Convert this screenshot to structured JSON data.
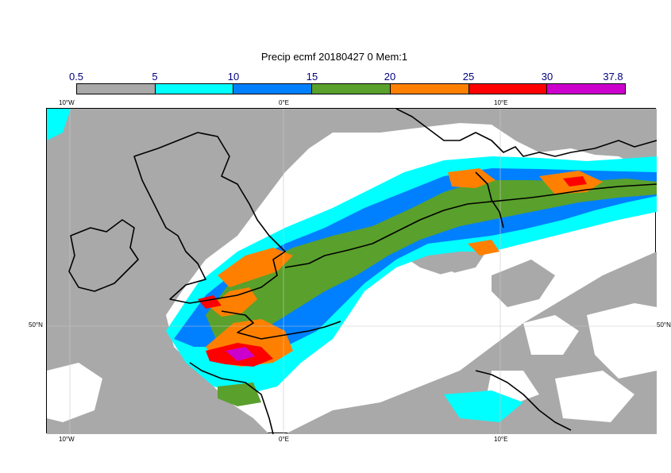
{
  "title": "Precip ecmf 20180427 0 Mem:1",
  "legend": {
    "labels": [
      "0.5",
      "5",
      "10",
      "15",
      "20",
      "25",
      "30",
      "37.8"
    ],
    "colors": [
      "#a9a9a9",
      "#00ffff",
      "#0080ff",
      "#5aa02c",
      "#ff8000",
      "#ff0000",
      "#cc00cc"
    ]
  },
  "axes": {
    "lon_top": [
      "10°W",
      "0°E",
      "10°E"
    ],
    "lon_bottom": [
      "10°W",
      "0°E",
      "10°E"
    ],
    "lat_left": [
      "50°N"
    ],
    "lat_right": [
      "50°N"
    ]
  },
  "map": {
    "variable": "Precip",
    "model": "ecmf",
    "date": "20180427",
    "step": "0",
    "member": "Mem:1",
    "coastline_color": "#000000",
    "gridline_color": "#c8c8c8"
  }
}
